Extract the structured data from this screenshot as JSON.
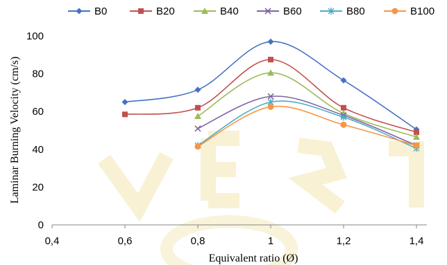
{
  "chart_data": {
    "type": "line",
    "smooth": true,
    "xlabel": "Equivalent ratio (Ø)",
    "ylabel": "Laminar Burning  Velocity (cm/s)",
    "xlim": [
      0.4,
      1.4
    ],
    "ylim": [
      0,
      100
    ],
    "xticks": [
      "0,4",
      "0,6",
      "0,8",
      "1",
      "1,2",
      "1,4"
    ],
    "yticks": [
      "0",
      "20",
      "40",
      "60",
      "80",
      "100"
    ],
    "legend_position": "top",
    "grid": false,
    "series": [
      {
        "name": "B0",
        "color": "#4472c4",
        "marker": "diamond",
        "x": [
          0.6,
          0.8,
          1.0,
          1.2,
          1.4
        ],
        "y": [
          65,
          71.5,
          97,
          76.5,
          50.5
        ]
      },
      {
        "name": "B20",
        "color": "#c0504d",
        "marker": "square",
        "x": [
          0.6,
          0.8,
          1.0,
          1.2,
          1.4
        ],
        "y": [
          58.5,
          62,
          87.5,
          62,
          49
        ]
      },
      {
        "name": "B40",
        "color": "#9bbb59",
        "marker": "triangle",
        "x": [
          0.8,
          1.0,
          1.2,
          1.4
        ],
        "y": [
          57.5,
          80.5,
          59,
          46.5
        ]
      },
      {
        "name": "B60",
        "color": "#8064a2",
        "marker": "x",
        "x": [
          0.8,
          1.0,
          1.2,
          1.4
        ],
        "y": [
          51,
          68,
          58,
          42
        ]
      },
      {
        "name": "B80",
        "color": "#4bacc6",
        "marker": "asterisk",
        "x": [
          0.8,
          1.0,
          1.2,
          1.4
        ],
        "y": [
          42,
          65,
          57,
          40.5
        ]
      },
      {
        "name": "B100",
        "color": "#f79646",
        "marker": "circle",
        "x": [
          0.8,
          1.0,
          1.2,
          1.4
        ],
        "y": [
          41.5,
          62.5,
          53,
          42
        ]
      }
    ]
  }
}
